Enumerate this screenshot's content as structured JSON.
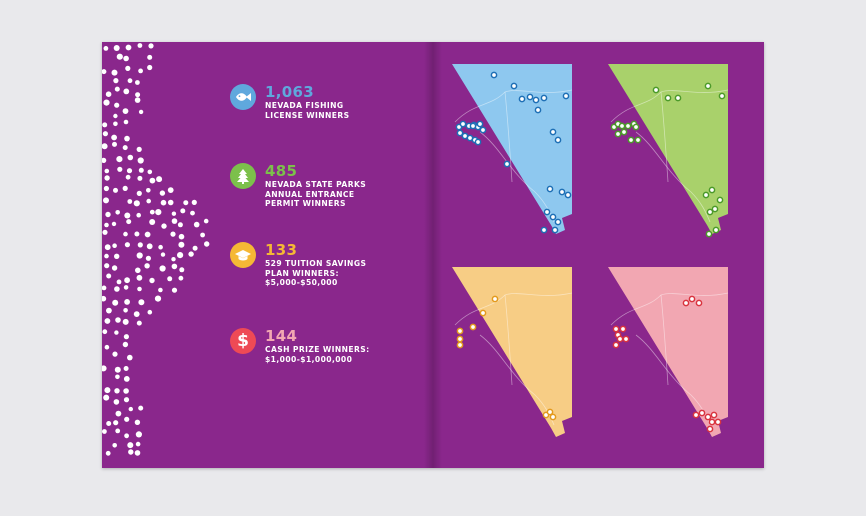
{
  "stats": [
    {
      "number": "1,063",
      "label": "NEVADA FISHING\nLICENSE WINNERS",
      "color": "#5fa8dd",
      "icon": "fish-icon"
    },
    {
      "number": "485",
      "label": "NEVADA STATE PARKS\nANNUAL ENTRANCE\nPERMIT WINNERS",
      "color": "#7cc04b",
      "icon": "tree-icon"
    },
    {
      "number": "133",
      "label": "529 TUITION SAVINGS\nPLAN WINNERS:\n$5,000-$50,000",
      "color": "#f5b835",
      "icon": "graduation-cap-icon"
    },
    {
      "number": "144",
      "label": "CASH PRIZE WINNERS:\n$1,000-$1,000,000",
      "color": "#ee4a55",
      "icon": "dollar-icon"
    }
  ],
  "maps": [
    {
      "name": "fishing",
      "fill": "#8ec8ef",
      "marker": "#1e6fb5"
    },
    {
      "name": "parks",
      "fill": "#a9d16b",
      "marker": "#4c9a2a"
    },
    {
      "name": "tuition",
      "fill": "#f7cd85",
      "marker": "#e39a1e"
    },
    {
      "name": "cash",
      "fill": "#f2a7b2",
      "marker": "#d9343f"
    }
  ],
  "colors": {
    "page": "#8a278c",
    "background": "#e9e9ec"
  }
}
